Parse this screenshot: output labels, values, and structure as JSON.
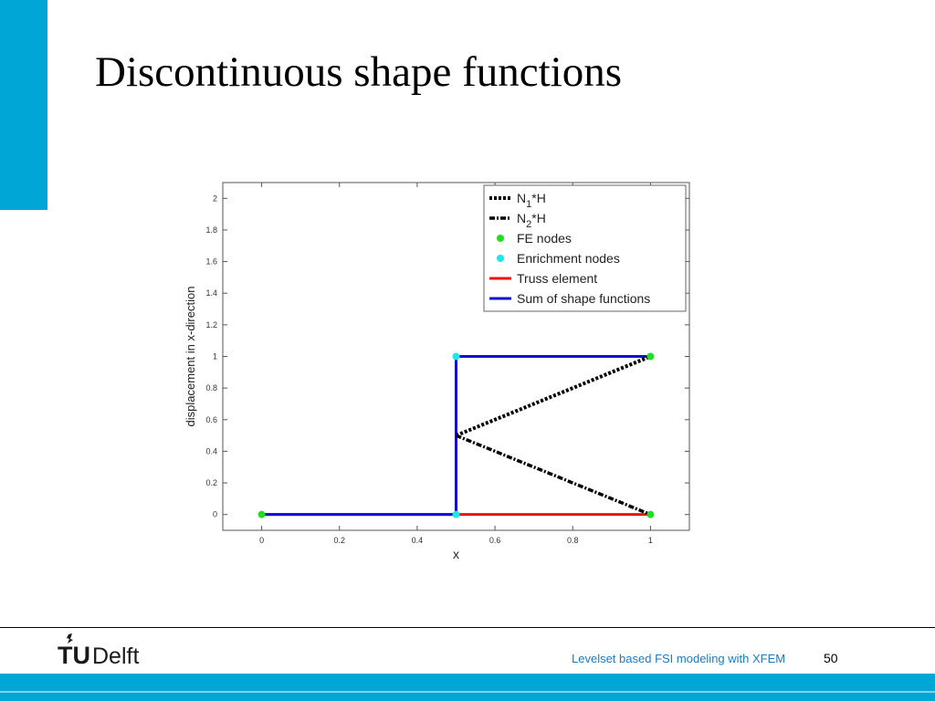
{
  "slide": {
    "title": "Discontinuous shape functions"
  },
  "footer": {
    "text": "Levelset based FSI modeling with XFEM",
    "page_number": "50",
    "logo": {
      "tu": "TU",
      "delft": "Delft"
    }
  },
  "colors": {
    "accent": "#00a6d6",
    "footer_text": "#1c79c2"
  },
  "chart_data": {
    "type": "line",
    "title": "",
    "xlabel": "x",
    "ylabel": "displacement in x-direction",
    "xlim": [
      -0.1,
      1.1
    ],
    "ylim": [
      -0.1,
      2.1
    ],
    "x_ticks": [
      0,
      0.2,
      0.4,
      0.6,
      0.8,
      1
    ],
    "x_tick_labels": [
      "0",
      "0.2",
      "0.4",
      "0.6",
      "0.8",
      "1"
    ],
    "y_ticks": [
      0,
      0.2,
      0.4,
      0.6,
      0.8,
      1,
      1.2,
      1.4,
      1.6,
      1.8,
      2
    ],
    "y_tick_labels": [
      "0",
      "0.2",
      "0.4",
      "0.6",
      "0.8",
      "1",
      "1.2",
      "1.4",
      "1.6",
      "1.8",
      "2"
    ],
    "grid": false,
    "legend_position": "top-right",
    "series": [
      {
        "name": "N1*H",
        "label_main": "N",
        "label_sub": "1",
        "label_tail": "*H",
        "style": "dotted",
        "color": "#000000",
        "x": [
          0.5,
          1
        ],
        "y": [
          0.5,
          1
        ]
      },
      {
        "name": "N2*H",
        "label_main": "N",
        "label_sub": "2",
        "label_tail": "*H",
        "style": "dashdot",
        "color": "#000000",
        "x": [
          0.5,
          1
        ],
        "y": [
          0.5,
          0
        ]
      },
      {
        "name": "FE nodes",
        "style": "markers",
        "color": "#22dd22",
        "x": [
          0,
          1,
          1
        ],
        "y": [
          0,
          0,
          1
        ]
      },
      {
        "name": "Enrichment nodes",
        "style": "markers",
        "color": "#22e5e5",
        "x": [
          0.5,
          0.5
        ],
        "y": [
          0,
          1
        ]
      },
      {
        "name": "Truss element",
        "style": "solid",
        "color": "#ee1111",
        "x": [
          0,
          1
        ],
        "y": [
          0,
          0
        ]
      },
      {
        "name": "Sum of shape functions",
        "style": "solid",
        "color": "#1111cc",
        "x": [
          0,
          0.5,
          0.5,
          1
        ],
        "y": [
          0,
          0,
          1,
          1
        ]
      }
    ]
  }
}
